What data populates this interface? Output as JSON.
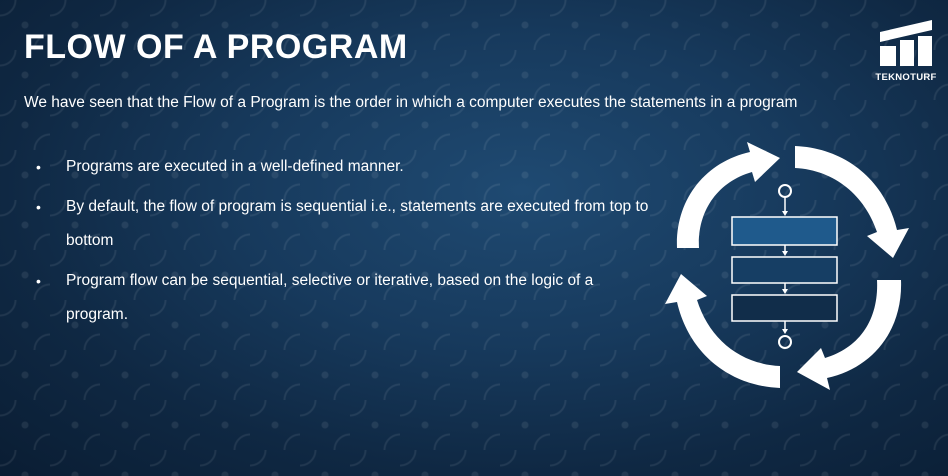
{
  "slide": {
    "title": "FLOW OF A PROGRAM",
    "intro": "We have seen that the Flow of a Program  is the order in which a computer executes the statements in a program",
    "bullets": [
      {
        "marker": "•",
        "text": "Programs are executed in a well-defined manner."
      },
      {
        "marker": "•",
        "text": "By default, the flow of program is sequential i.e., statements are executed from top to bottom"
      },
      {
        "marker": "•",
        "text": " Program flow can be sequential, selective or iterative, based on the logic of a program."
      }
    ]
  },
  "logo": {
    "name": "TEKNOTURF"
  },
  "diagram": {
    "icon": "cyclic-flowchart-icon",
    "arrow_color": "#ffffff",
    "box_colors": [
      "#1f5a8c",
      "#163e64",
      "#112d4a"
    ]
  }
}
